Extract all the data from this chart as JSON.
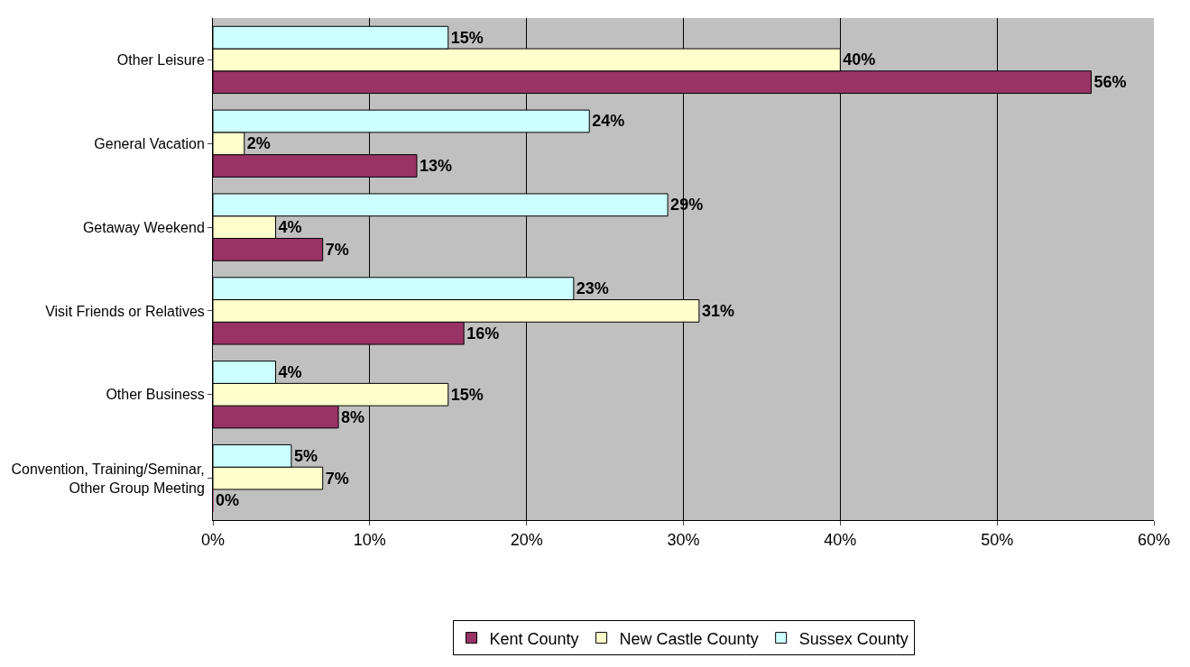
{
  "chart_data": {
    "type": "bar",
    "orientation": "horizontal",
    "categories": [
      "Other Leisure",
      "General Vacation",
      "Getaway Weekend",
      "Visit Friends or Relatives",
      "Other Business",
      "Convention, Training/Seminar, Other Group Meeting"
    ],
    "series": [
      {
        "name": "Kent County",
        "color": "#993366",
        "values": [
          56,
          13,
          7,
          16,
          8,
          0
        ],
        "value_labels": [
          "56%",
          "13%",
          "7%",
          "16%",
          "8%",
          "0%"
        ]
      },
      {
        "name": "New Castle County",
        "color": "#ffffcc",
        "values": [
          40,
          2,
          4,
          31,
          15,
          7
        ],
        "value_labels": [
          "40%",
          "2%",
          "4%",
          "31%",
          "15%",
          "7%"
        ]
      },
      {
        "name": "Sussex County",
        "color": "#ccffff",
        "values": [
          15,
          24,
          29,
          23,
          4,
          5
        ],
        "value_labels": [
          "15%",
          "24%",
          "29%",
          "23%",
          "4%",
          "5%"
        ]
      }
    ],
    "xlim": [
      0,
      60
    ],
    "xticks": [
      {
        "value": 0,
        "label": "0%"
      },
      {
        "value": 10,
        "label": "10%"
      },
      {
        "value": 20,
        "label": "20%"
      },
      {
        "value": 30,
        "label": "30%"
      },
      {
        "value": 40,
        "label": "40%"
      },
      {
        "value": 50,
        "label": "50%"
      },
      {
        "value": 60,
        "label": "60%"
      }
    ],
    "grid": "x",
    "legend": "bottom"
  }
}
